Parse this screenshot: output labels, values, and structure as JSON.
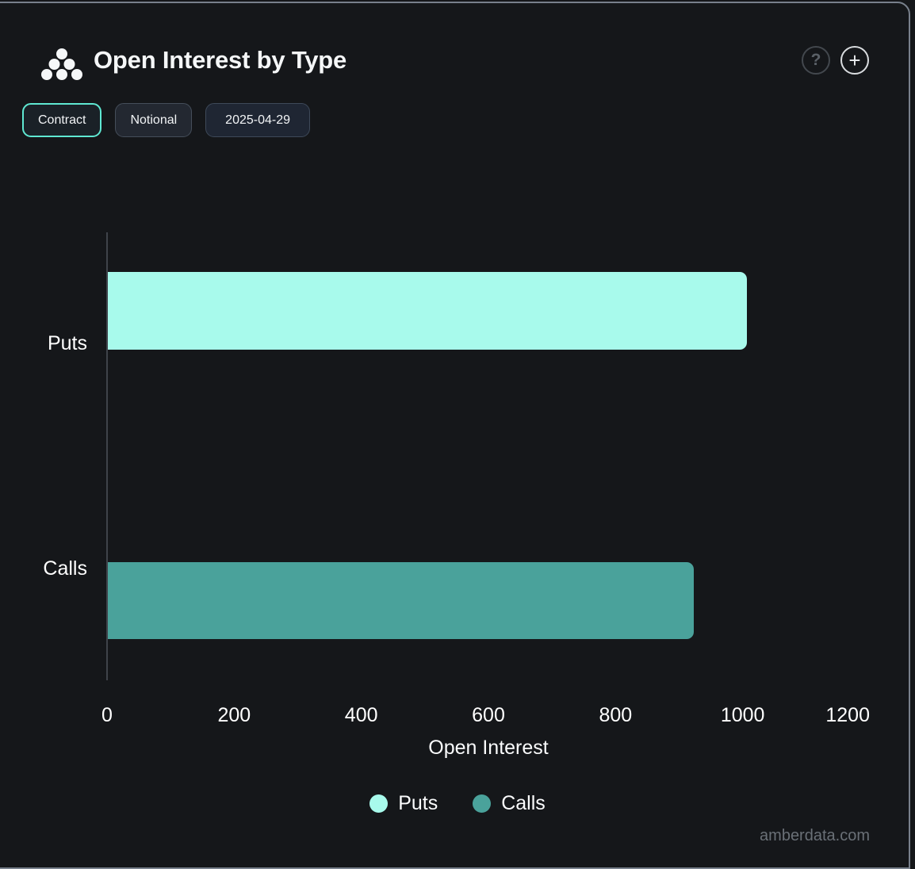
{
  "header": {
    "title": "Open Interest by Type",
    "icons": {
      "help": "?",
      "plus": "+"
    }
  },
  "toolbar": {
    "buttons": [
      {
        "label": "Contract",
        "active": true
      },
      {
        "label": "Notional",
        "active": false
      },
      {
        "label": "2025-04-29",
        "active": false
      }
    ]
  },
  "chart_data": {
    "type": "bar",
    "orientation": "horizontal",
    "title": "Open Interest by Type",
    "categories": [
      "Puts",
      "Calls"
    ],
    "series": [
      {
        "name": "Puts",
        "color": "#a8faec",
        "values": [
          1005,
          null
        ]
      },
      {
        "name": "Calls",
        "color": "#4aa29b",
        "values": [
          null,
          922
        ]
      }
    ],
    "xlabel": "Open Interest",
    "ylabel": "",
    "xlim": [
      0,
      1200
    ],
    "xticks": [
      0,
      200,
      400,
      600,
      800,
      1000,
      1200
    ],
    "grid": false,
    "legend": [
      "Puts",
      "Calls"
    ],
    "legend_position": "bottom"
  },
  "watermark": "amberdata.com"
}
